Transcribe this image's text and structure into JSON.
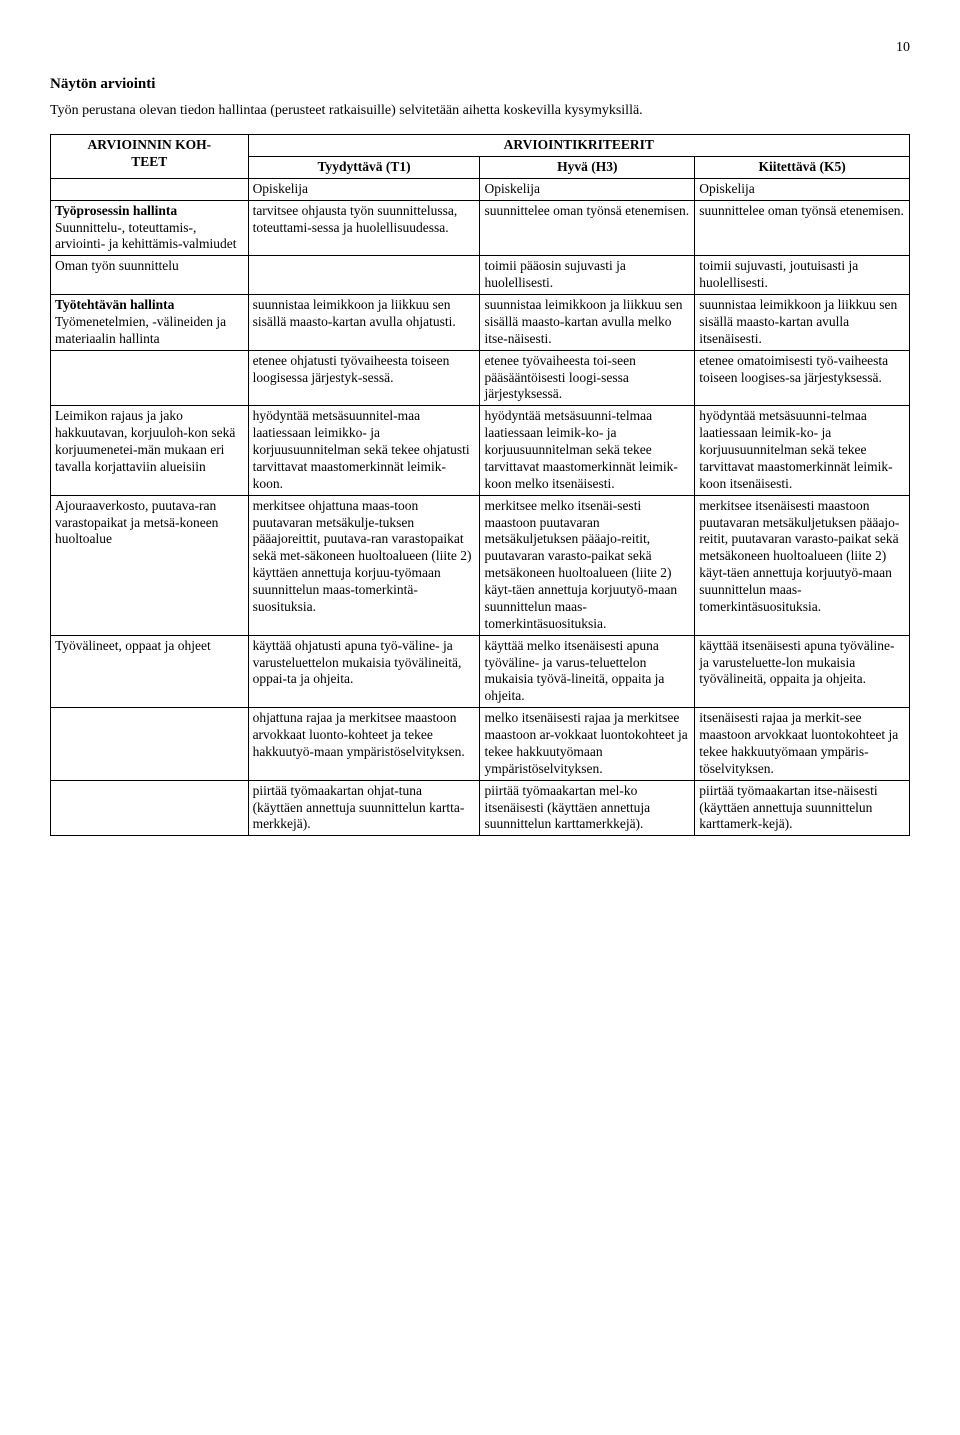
{
  "page_number": "10",
  "heading": "Näytön arviointi",
  "intro": "Työn perustana olevan tiedon hallintaa (perusteet ratkaisuille) selvitetään aihetta koskevilla kysymyksillä.",
  "table": {
    "kohteet_label_line1": "ARVIOINNIN KOH-",
    "kohteet_label_line2": "TEET",
    "kriteerit_label": "ARVIOINTIKRITEERIT",
    "levels": {
      "t1": "Tyydyttävä (T1)",
      "h3": "Hyvä (H3)",
      "k5": "Kiitettävä (K5)"
    },
    "opiskelija": "Opiskelija",
    "sections": [
      {
        "title": "Työprosessin hallinta",
        "rows": [
          {
            "label": "Suunnittelu-, toteuttamis-, arviointi- ja kehittämis-valmiudet",
            "t1": "tarvitsee ohjausta työn suunnittelussa, toteuttami-sessa ja huolellisuudessa.",
            "h3": "suunnittelee oman työnsä etenemisen.",
            "k5": "suunnittelee oman työnsä etenemisen."
          },
          {
            "label": "Oman työn suunnittelu",
            "t1": "",
            "h3": "toimii pääosin sujuvasti ja huolellisesti.",
            "k5": "toimii sujuvasti, joutuisasti ja huolellisesti."
          }
        ]
      },
      {
        "title": "Työtehtävän hallinta",
        "rows": [
          {
            "label": "Työmenetelmien, -välineiden ja materiaalin hallinta",
            "t1": "suunnistaa leimikkoon ja liikkuu sen sisällä maasto-kartan avulla ohjatusti.",
            "h3": "suunnistaa leimikkoon ja liikkuu sen sisällä maasto-kartan avulla melko itse-näisesti.",
            "k5": "suunnistaa leimikkoon ja liikkuu sen sisällä maasto-kartan avulla itsenäisesti."
          },
          {
            "label": "",
            "t1": "etenee ohjatusti työvaiheesta toiseen loogisessa järjestyk-sessä.",
            "h3": "etenee työvaiheesta toi-seen pääsääntöisesti loogi-sessa järjestyksessä.",
            "k5": "etenee omatoimisesti työ-vaiheesta toiseen loogises-sa järjestyksessä."
          },
          {
            "label": "Leimikon rajaus ja jako hakkuutavan, korjuuloh-kon sekä korjuumenetei-män mukaan eri tavalla korjattaviin alueisiin",
            "t1": "hyödyntää metsäsuunnitel-maa laatiessaan leimikko- ja korjuusuunnitelman sekä tekee ohjatusti tarvittavat maastomerkinnät leimik-koon.",
            "h3": "hyödyntää metsäsuunni-telmaa laatiessaan leimik-ko- ja korjuusuunnitelman sekä tekee tarvittavat maastomerkinnät leimik-koon melko itsenäisesti.",
            "k5": "hyödyntää metsäsuunni-telmaa laatiessaan leimik-ko- ja korjuusuunnitelman sekä tekee tarvittavat maastomerkinnät leimik-koon itsenäisesti."
          },
          {
            "label": "Ajouraaverkosto, puutava-ran varastopaikat ja metsä-koneen huoltoalue",
            "t1": "merkitsee ohjattuna maas-toon puutavaran metsäkulje-tuksen pääajoreittit, puutava-ran varastopaikat sekä met-säkoneen huoltoalueen (liite 2) käyttäen annettuja korjuu-työmaan suunnittelun maas-tomerkintä-suosituksia.",
            "h3": "merkitsee melko itsenäi-sesti maastoon puutavaran metsäkuljetuksen pääajo-reitit, puutavaran varasto-paikat sekä metsäkoneen huoltoalueen (liite 2) käyt-täen annettuja korjuutyö-maan suunnittelun maas-tomerkintäsuosituksia.",
            "k5": "merkitsee itsenäisesti maastoon puutavaran metsäkuljetuksen pääajo-reitit, puutavaran varasto-paikat sekä metsäkoneen huoltoalueen (liite 2) käyt-täen annettuja korjuutyö-maan suunnittelun maas-tomerkintäsuosituksia."
          },
          {
            "label": "Työvälineet, oppaat ja ohjeet",
            "t1": "käyttää ohjatusti apuna työ-väline- ja varusteluettelon mukaisia työvälineitä, oppai-ta ja ohjeita.",
            "h3": "käyttää melko itsenäisesti apuna työväline- ja varus-teluettelon mukaisia työvä-lineitä, oppaita ja ohjeita.",
            "k5": "käyttää itsenäisesti apuna työväline- ja varusteluette-lon mukaisia työvälineitä, oppaita ja ohjeita."
          },
          {
            "label": "",
            "t1": "ohjattuna rajaa ja merkitsee maastoon arvokkaat luonto-kohteet ja tekee hakkuutyö-maan ympäristöselvityksen.",
            "h3": "melko itsenäisesti rajaa ja merkitsee maastoon ar-vokkaat luontokohteet ja tekee hakkuutyömaan ympäristöselvityksen.",
            "k5": "itsenäisesti rajaa ja merkit-see maastoon arvokkaat luontokohteet ja tekee hakkuutyömaan ympäris-töselvityksen."
          },
          {
            "label": "",
            "t1": "piirtää työmaakartan ohjat-tuna (käyttäen annettuja suunnittelun kartta-merkkejä).",
            "h3": "piirtää työmaakartan mel-ko itsenäisesti (käyttäen annettuja suunnittelun karttamerkkejä).",
            "k5": "piirtää työmaakartan itse-näisesti (käyttäen annettuja suunnittelun karttamerk-kejä)."
          }
        ]
      }
    ]
  }
}
